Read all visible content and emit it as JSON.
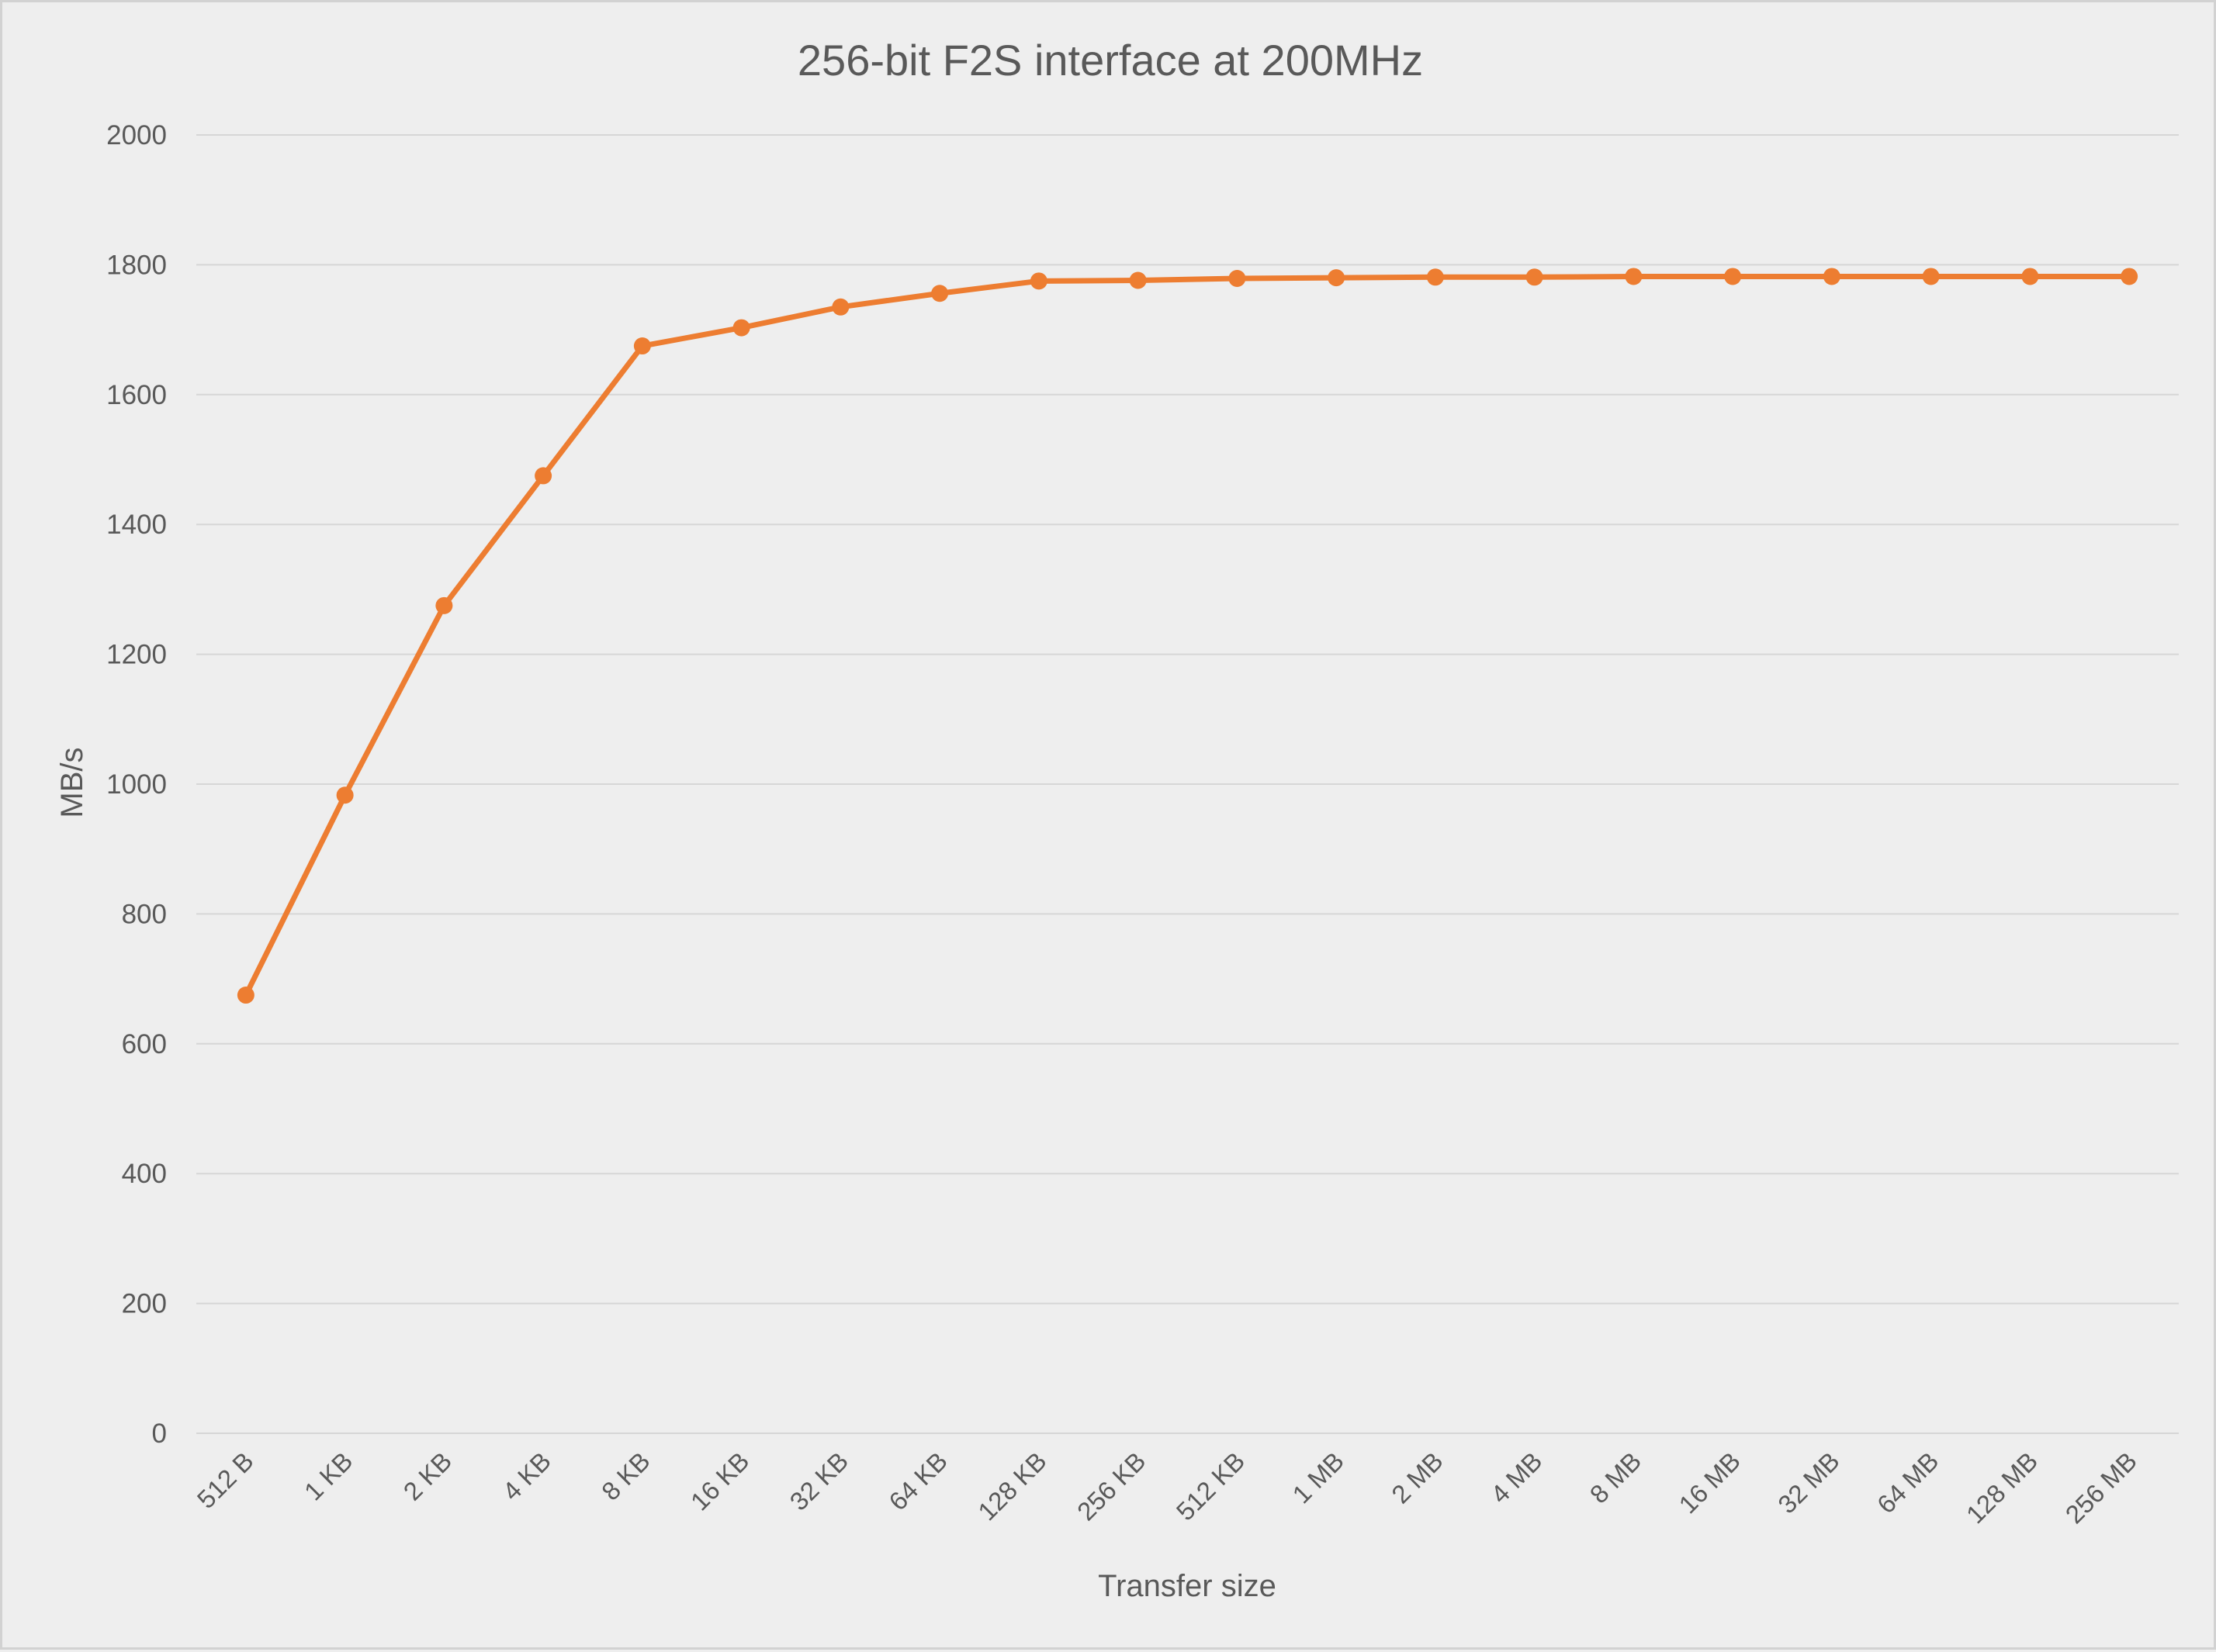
{
  "chart_data": {
    "type": "line",
    "title": "256-bit F2S interface at 200MHz",
    "xlabel": "Transfer size",
    "ylabel": "MB/s",
    "ylim": [
      0,
      2000
    ],
    "y_ticks": [
      0,
      200,
      400,
      600,
      800,
      1000,
      1200,
      1400,
      1600,
      1800,
      2000
    ],
    "grid": true,
    "legend": "none",
    "categories": [
      "512 B",
      "1 KB",
      "2 KB",
      "4 KB",
      "8 KB",
      "16 KB",
      "32 KB",
      "64 KB",
      "128 KB",
      "256 KB",
      "512 KB",
      "1 MB",
      "2 MB",
      "4 MB",
      "8 MB",
      "16 MB",
      "32 MB",
      "64 MB",
      "128 MB",
      "256 MB"
    ],
    "series": [
      {
        "color": "#ED7D31",
        "marker": "circle",
        "values": [
          675,
          983,
          1275,
          1475,
          1675,
          1703,
          1735,
          1756,
          1775,
          1776,
          1779,
          1780,
          1781,
          1781,
          1782,
          1782,
          1782,
          1782,
          1782,
          1782
        ]
      }
    ]
  }
}
